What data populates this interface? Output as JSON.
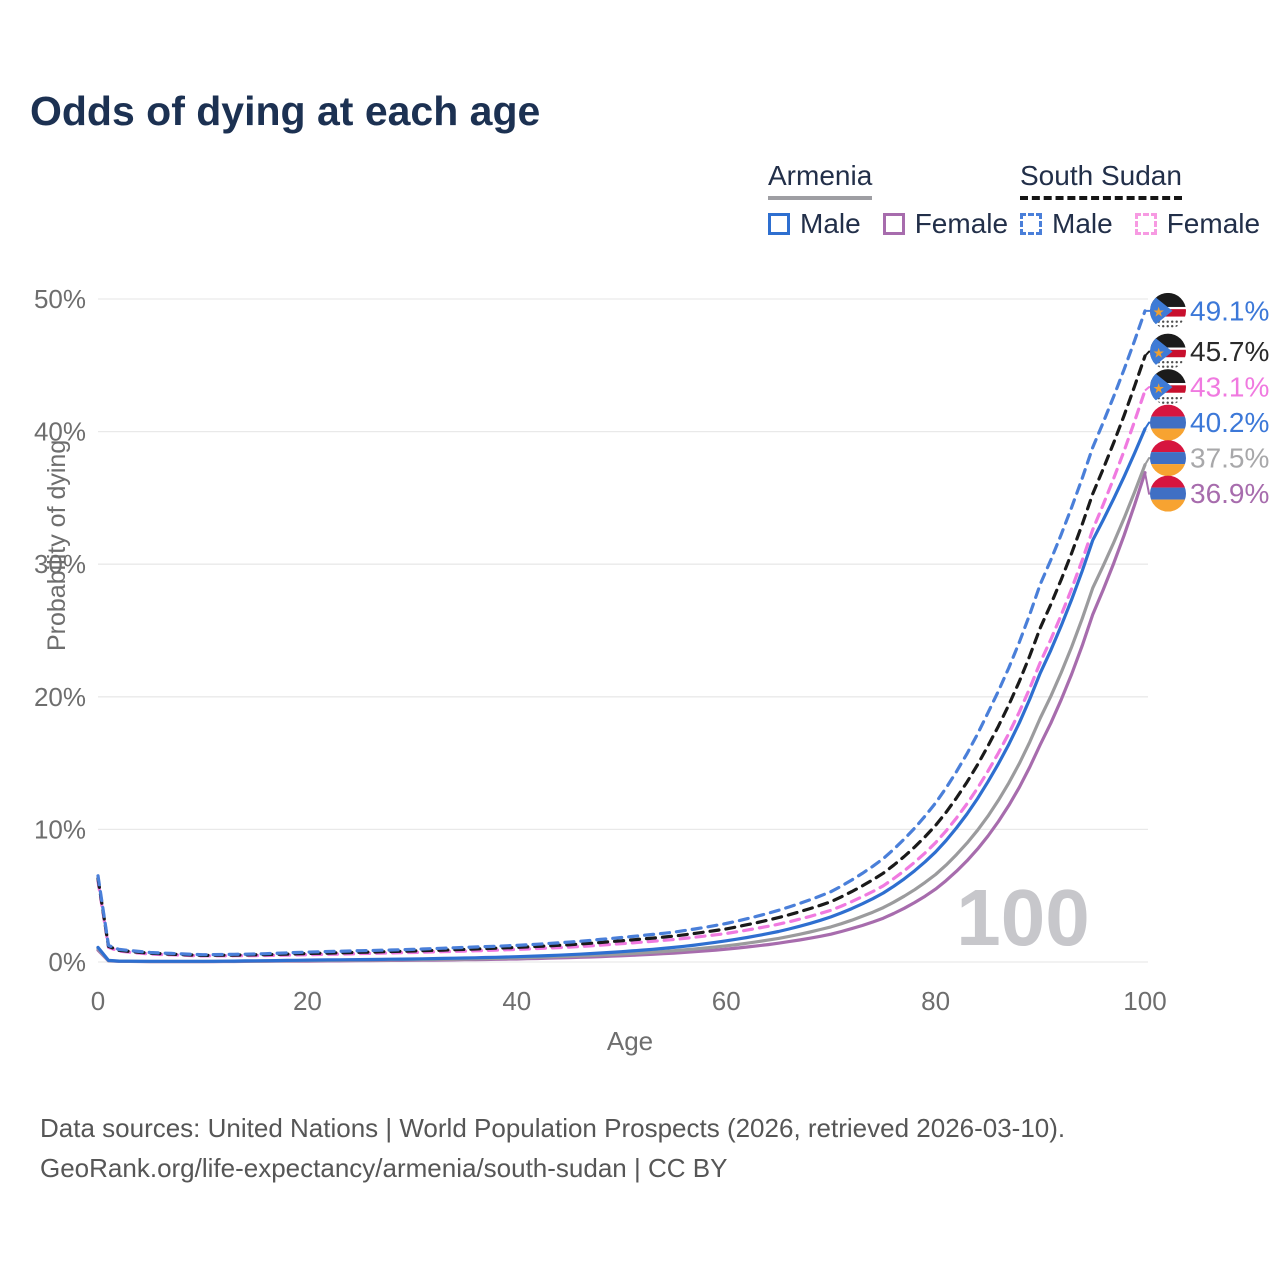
{
  "title": "Odds of dying at each age",
  "watermark_age": "100",
  "legend": {
    "groups": [
      {
        "name": "Armenia",
        "line_style": "solid",
        "underline_color": "#9e9ea3",
        "items": [
          {
            "label": "Male",
            "color": "#2e6fd0"
          },
          {
            "label": "Female",
            "color": "#a76cad"
          }
        ]
      },
      {
        "name": "South Sudan",
        "line_style": "dashed",
        "underline_color": "#151515",
        "items": [
          {
            "label": "Male",
            "color": "#4a7fd9"
          },
          {
            "label": "Female",
            "color": "#f79ae2"
          }
        ]
      }
    ]
  },
  "axes": {
    "x": {
      "label": "Age",
      "tick_labels": [
        "0",
        "20",
        "40",
        "60",
        "80",
        "100"
      ],
      "tick_values": [
        0,
        20,
        40,
        60,
        80,
        100
      ],
      "range": [
        0,
        100
      ]
    },
    "y": {
      "label": "Probability of dying",
      "tick_labels": [
        "0%",
        "10%",
        "20%",
        "30%",
        "40%",
        "50%"
      ],
      "tick_values": [
        0,
        10,
        20,
        30,
        40,
        50
      ],
      "range": [
        0,
        50
      ],
      "grid": true
    }
  },
  "chart_data": {
    "type": "line",
    "title": "Odds of dying at each age",
    "xlabel": "Age",
    "ylabel": "Probability of dying",
    "xlim": [
      0,
      100
    ],
    "ylim": [
      0,
      50
    ],
    "legend_position": "top-right",
    "x_ages": [
      0,
      1,
      2,
      5,
      10,
      15,
      20,
      25,
      30,
      35,
      40,
      45,
      50,
      55,
      60,
      65,
      70,
      75,
      80,
      85,
      90,
      95,
      100
    ],
    "series": [
      {
        "name": "Armenia Female",
        "country": "armenia",
        "sex": "female",
        "color": "#a76cad",
        "label_color": "#a76cad",
        "dash": false,
        "end_label": "36.9%",
        "end_value": 36.9,
        "values": [
          0.9,
          0.08,
          0.05,
          0.03,
          0.03,
          0.05,
          0.07,
          0.1,
          0.13,
          0.17,
          0.23,
          0.33,
          0.47,
          0.67,
          0.97,
          1.42,
          2.1,
          3.3,
          5.5,
          9.5,
          16.4,
          26.2,
          36.9
        ]
      },
      {
        "name": "Armenia Both sexes",
        "country": "armenia",
        "sex": "both",
        "color": "#9b9b9d",
        "label_color": "#a8a8aa",
        "dash": false,
        "end_label": "37.5%",
        "end_value": 37.5,
        "values": [
          1.0,
          0.1,
          0.06,
          0.04,
          0.04,
          0.07,
          0.11,
          0.14,
          0.18,
          0.23,
          0.31,
          0.43,
          0.6,
          0.85,
          1.22,
          1.78,
          2.65,
          4.1,
          6.6,
          11.0,
          18.4,
          28.2,
          37.5
        ]
      },
      {
        "name": "Armenia Male",
        "country": "armenia",
        "sex": "male",
        "color": "#2e6fd0",
        "label_color": "#3c78d8",
        "dash": false,
        "end_label": "40.2%",
        "end_value": 40.2,
        "values": [
          1.1,
          0.12,
          0.07,
          0.05,
          0.05,
          0.09,
          0.14,
          0.18,
          0.23,
          0.3,
          0.4,
          0.55,
          0.78,
          1.1,
          1.6,
          2.3,
          3.4,
          5.2,
          8.3,
          13.6,
          21.8,
          31.8,
          40.2
        ]
      },
      {
        "name": "South Sudan Female",
        "country": "south-sudan",
        "sex": "female",
        "color": "#f07ae0",
        "label_color": "#f07ae0",
        "dash": true,
        "end_label": "43.1%",
        "end_value": 43.1,
        "values": [
          6.1,
          1.1,
          0.82,
          0.6,
          0.46,
          0.48,
          0.55,
          0.63,
          0.72,
          0.82,
          0.95,
          1.12,
          1.38,
          1.7,
          2.15,
          2.85,
          3.9,
          5.75,
          9.0,
          14.4,
          22.6,
          32.6,
          43.1
        ]
      },
      {
        "name": "South Sudan Both sexes",
        "country": "south-sudan",
        "sex": "both",
        "color": "#1a1a1a",
        "label_color": "#2a2a2a",
        "dash": true,
        "end_label": "45.7%",
        "end_value": 45.7,
        "values": [
          6.3,
          1.18,
          0.88,
          0.66,
          0.5,
          0.54,
          0.64,
          0.73,
          0.83,
          0.95,
          1.1,
          1.3,
          1.6,
          1.95,
          2.5,
          3.35,
          4.55,
          6.7,
          10.3,
          16.3,
          25.2,
          35.3,
          45.7
        ]
      },
      {
        "name": "South Sudan Male",
        "country": "south-sudan",
        "sex": "male",
        "color": "#4a7fd9",
        "label_color": "#3c78d8",
        "dash": true,
        "end_label": "49.1%",
        "end_value": 49.1,
        "values": [
          6.5,
          1.25,
          0.95,
          0.72,
          0.55,
          0.6,
          0.75,
          0.85,
          0.95,
          1.1,
          1.25,
          1.5,
          1.85,
          2.25,
          2.9,
          3.9,
          5.3,
          7.8,
          12.0,
          18.8,
          28.5,
          38.8,
          49.1
        ]
      }
    ]
  },
  "flags": {
    "armenia": {
      "red": "#d6153f",
      "blue": "#3f6fc4",
      "orange": "#f7a331"
    },
    "south_sudan": {
      "black": "#1b1b1b",
      "white": "#ffffff",
      "red": "#c8102e",
      "triangle_blue": "#3e7bd6",
      "star": "#f0a030",
      "dot": "#4d4d4d"
    }
  },
  "footer": {
    "line1": "Data sources: United Nations | World Population Prospects (2026, retrieved 2026-03-10).",
    "line2": "GeoRank.org/life-expectancy/armenia/south-sudan | CC BY"
  },
  "style_colors": {
    "title": "#1c3152",
    "axis_text": "#6e6e6e",
    "gridline": "#e9e9e9",
    "watermark": "#c7c7cb",
    "footer_text": "#565656"
  }
}
